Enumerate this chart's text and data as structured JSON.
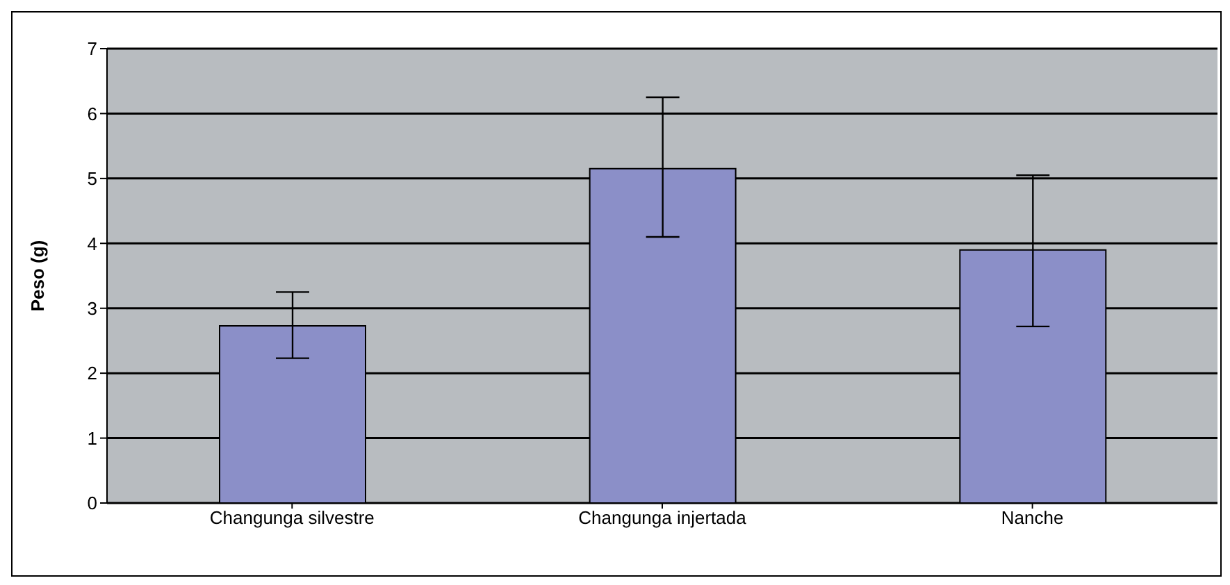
{
  "chart_data": {
    "type": "bar",
    "ylabel": "Peso (g)",
    "categories": [
      "Changunga silvestre",
      "Changunga injertada",
      "Nanche"
    ],
    "values": [
      2.73,
      5.15,
      3.9
    ],
    "errors": [
      [
        2.23,
        3.25
      ],
      [
        4.1,
        6.25
      ],
      [
        2.72,
        5.05
      ]
    ],
    "color": "#8b8fc8",
    "ylim": [
      0,
      7
    ],
    "yticks": [
      0,
      1,
      2,
      3,
      4,
      5,
      6,
      7
    ],
    "grid": "y"
  }
}
